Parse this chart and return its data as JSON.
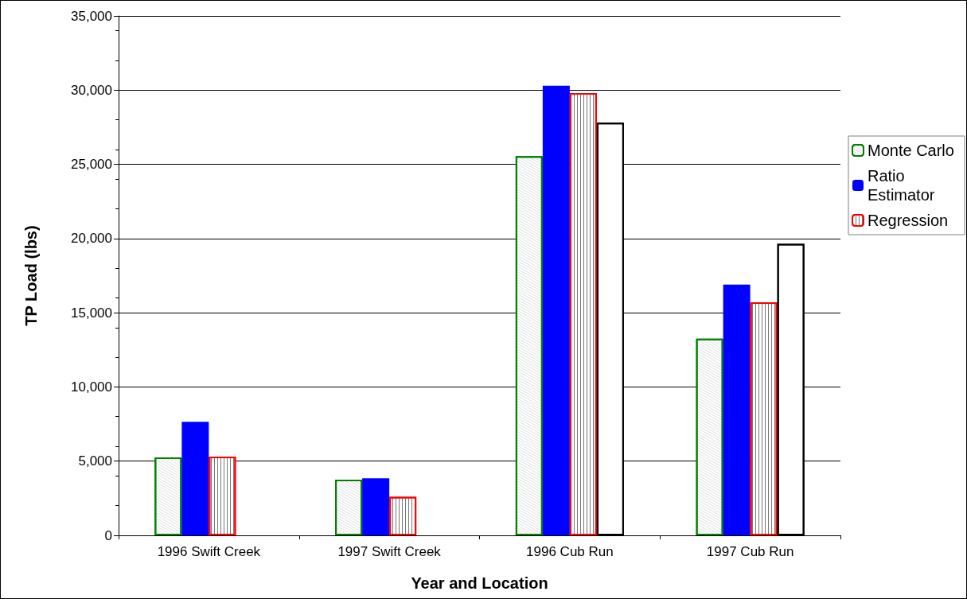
{
  "chart_data": {
    "type": "bar",
    "xlabel": "Year and Location",
    "ylabel": "TP Load (lbs)",
    "categories": [
      "1996 Swift Creek",
      "1997 Swift Creek",
      "1996 Cub Run",
      "1997 Cub Run"
    ],
    "series": [
      {
        "name": "Monte Carlo",
        "color": "#008000",
        "values": [
          5250,
          3750,
          25550,
          13250
        ]
      },
      {
        "name": "Ratio Estimator",
        "color": "#0000ff",
        "values": [
          7650,
          3850,
          30300,
          16900
        ]
      },
      {
        "name": "Regression",
        "color": "#ff0000",
        "values": [
          5300,
          2600,
          29800,
          15700
        ]
      },
      {
        "color": "#000000",
        "values": [
          null,
          null,
          27800,
          19650
        ]
      }
    ],
    "ylim": [
      0,
      35000
    ],
    "yticks": [
      0,
      {
        "value": 5000,
        "label": "5,000"
      },
      {
        "value": 10000,
        "label": "10,000"
      },
      {
        "value": 15000,
        "label": "15,000"
      },
      {
        "value": 20000,
        "label": "20,000"
      },
      {
        "value": 25000,
        "label": "25,000"
      },
      {
        "value": 30000,
        "label": "30,000"
      },
      {
        "value": 35000,
        "label": "35,000"
      }
    ],
    "grid": "y",
    "legend": "right"
  }
}
